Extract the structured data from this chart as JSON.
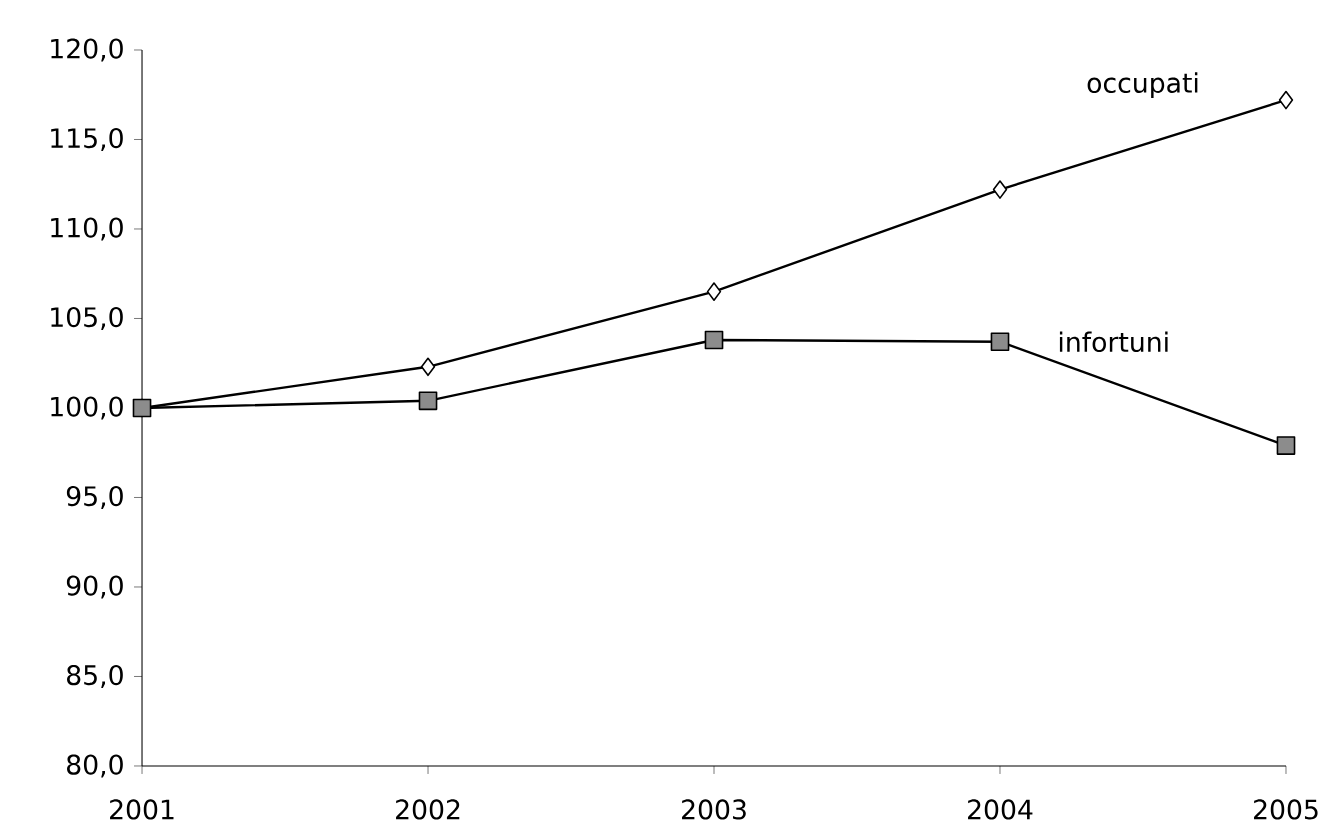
{
  "chart_data": {
    "type": "line",
    "categories": [
      "2001",
      "2002",
      "2003",
      "2004",
      "2005"
    ],
    "series": [
      {
        "name": "occupati",
        "color": "#ffffff",
        "marker": "diamond",
        "values": [
          100.0,
          102.3,
          106.5,
          112.2,
          117.2
        ]
      },
      {
        "name": "infortuni",
        "color": "#8c8c8c",
        "marker": "square",
        "values": [
          100.0,
          100.4,
          103.8,
          103.7,
          97.9
        ]
      }
    ],
    "ylim": [
      80,
      120
    ],
    "yticks": [
      {
        "value": 80,
        "label": "80,0"
      },
      {
        "value": 85,
        "label": "85,0"
      },
      {
        "value": 90,
        "label": "90,0"
      },
      {
        "value": 95,
        "label": "95,0"
      },
      {
        "value": 100,
        "label": "100,0"
      },
      {
        "value": 105,
        "label": "105,0"
      },
      {
        "value": 110,
        "label": "110,0"
      },
      {
        "value": 115,
        "label": "115,0"
      },
      {
        "value": 120,
        "label": "120,0"
      }
    ],
    "grid": false,
    "legend": false
  }
}
